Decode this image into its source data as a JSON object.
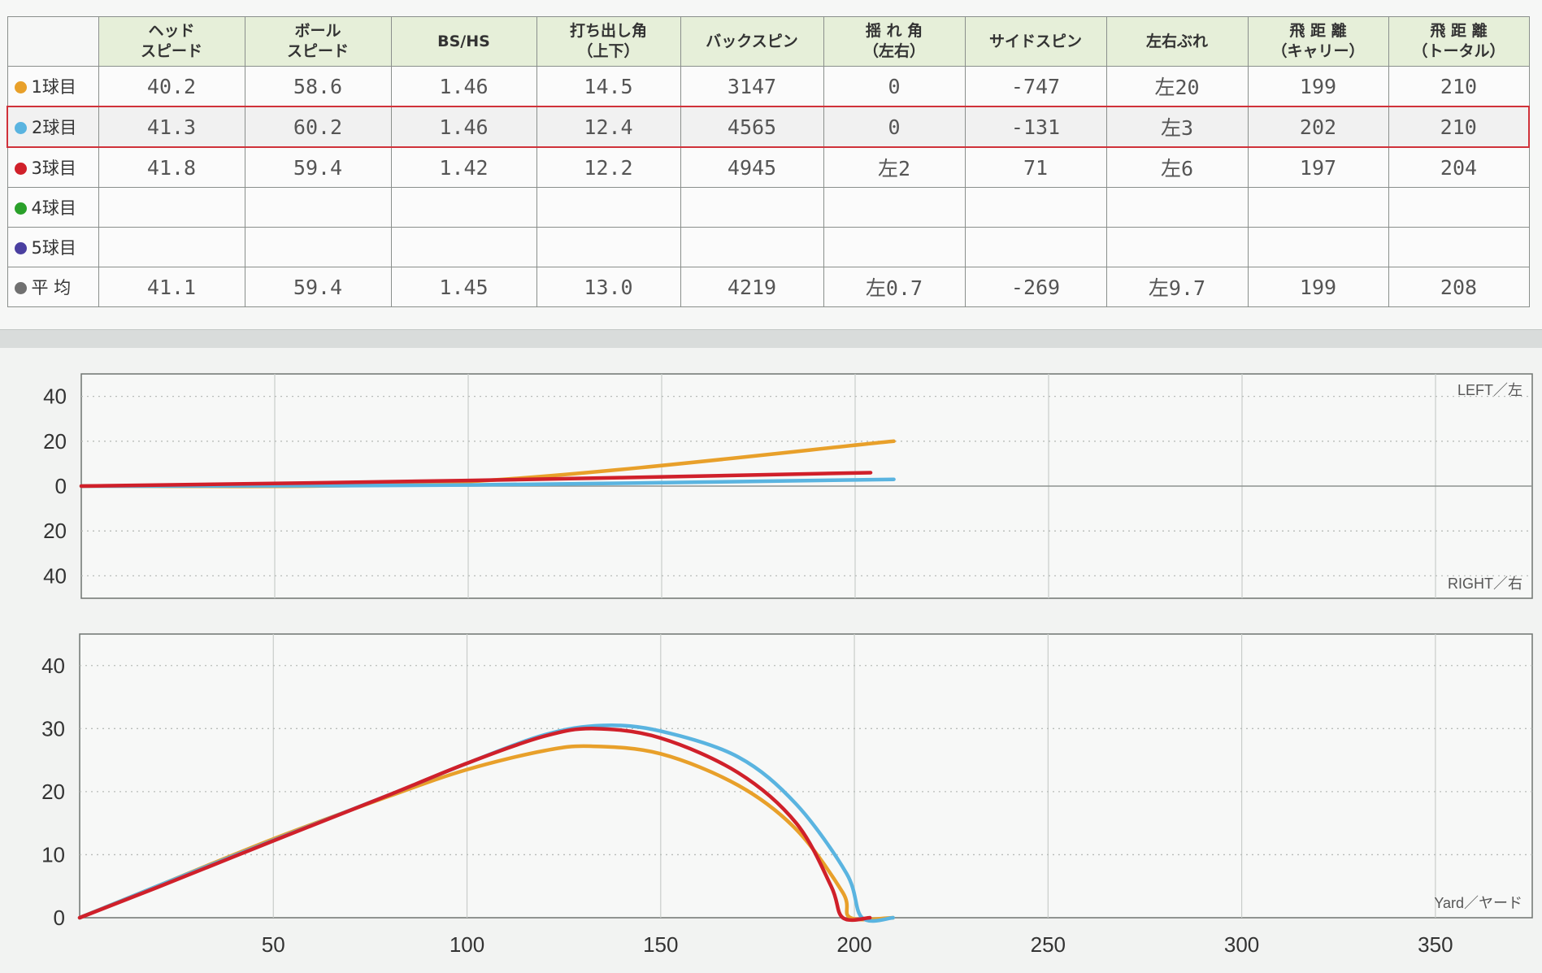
{
  "table": {
    "headers": [
      "",
      "ヘッド\nスピード",
      "ボール\nスピード",
      "BS/HS",
      "打ち出し角\n（上下）",
      "バックスピン",
      "揺 れ 角\n（左右）",
      "サイドスピン",
      "左右ぶれ",
      "飛 距 離\n（キャリー）",
      "飛 距 離\n（トータル）"
    ],
    "rows": [
      {
        "label": "1球目",
        "dot_color": "#e8a02a",
        "cells": [
          "40.2",
          "58.6",
          "1.46",
          "14.5",
          "3147",
          "0",
          "-747",
          "左20",
          "199",
          "210"
        ]
      },
      {
        "label": "2球目",
        "dot_color": "#5ab4e0",
        "selected": true,
        "cells": [
          "41.3",
          "60.2",
          "1.46",
          "12.4",
          "4565",
          "0",
          "-131",
          "左3",
          "202",
          "210"
        ]
      },
      {
        "label": "3球目",
        "dot_color": "#d0202a",
        "cells": [
          "41.8",
          "59.4",
          "1.42",
          "12.2",
          "4945",
          "左2",
          "71",
          "左6",
          "197",
          "204"
        ]
      },
      {
        "label": "4球目",
        "dot_color": "#2aa02a",
        "cells": [
          "",
          "",
          "",
          "",
          "",
          "",
          "",
          "",
          "",
          ""
        ]
      },
      {
        "label": "5球目",
        "dot_color": "#4a3fa0",
        "cells": [
          "",
          "",
          "",
          "",
          "",
          "",
          "",
          "",
          "",
          ""
        ]
      },
      {
        "label": "平 均",
        "dot_color": "#707070",
        "cells": [
          "41.1",
          "59.4",
          "1.45",
          "13.0",
          "4219",
          "左0.7",
          "-269",
          "左9.7",
          "199",
          "208"
        ]
      }
    ]
  },
  "chart_data": [
    {
      "type": "line",
      "view": "top",
      "corner_labels": {
        "top_right": "LEFT／左",
        "bottom_right": "RIGHT／右"
      },
      "y_ticks": [
        "40",
        "20",
        "0",
        "20",
        "40"
      ],
      "ylim": [
        -50,
        50
      ],
      "xlim": [
        0,
        375
      ],
      "grid": true,
      "series": [
        {
          "color": "#e8a02a",
          "x": [
            0,
            100,
            210
          ],
          "y": [
            0,
            2,
            20
          ]
        },
        {
          "color": "#5ab4e0",
          "x": [
            0,
            100,
            210
          ],
          "y": [
            0,
            0.5,
            3
          ]
        },
        {
          "color": "#d0202a",
          "x": [
            0,
            100,
            204
          ],
          "y": [
            0,
            2.5,
            6
          ]
        }
      ]
    },
    {
      "type": "line",
      "view": "side",
      "corner_labels": {
        "bottom_right": "Yard／ヤード"
      },
      "x_ticks": [
        "50",
        "100",
        "150",
        "200",
        "250",
        "300",
        "350"
      ],
      "y_ticks": [
        "40",
        "30",
        "20",
        "10",
        "0"
      ],
      "ylim": [
        0,
        45
      ],
      "xlim": [
        0,
        375
      ],
      "grid": true,
      "series": [
        {
          "color": "#e8a02a",
          "x": [
            0,
            20,
            50,
            80,
            100,
            120,
            132,
            150,
            170,
            185,
            197,
            199,
            210
          ],
          "y": [
            0,
            5,
            12.5,
            19.3,
            23.5,
            26.5,
            27.2,
            26,
            21,
            14,
            4,
            0,
            0
          ]
        },
        {
          "color": "#5ab4e0",
          "x": [
            0,
            20,
            50,
            80,
            100,
            120,
            135,
            150,
            170,
            185,
            198,
            202,
            210
          ],
          "y": [
            0,
            5,
            12.3,
            19.5,
            24.5,
            29,
            30.5,
            29.6,
            25.5,
            18,
            7,
            0,
            0
          ]
        },
        {
          "color": "#d0202a",
          "x": [
            0,
            20,
            50,
            80,
            100,
            120,
            133,
            150,
            170,
            185,
            194,
            197,
            204
          ],
          "y": [
            0,
            4.8,
            12.2,
            19.5,
            24.5,
            28.8,
            30,
            28.5,
            23,
            15,
            5,
            0,
            0
          ]
        }
      ]
    }
  ]
}
